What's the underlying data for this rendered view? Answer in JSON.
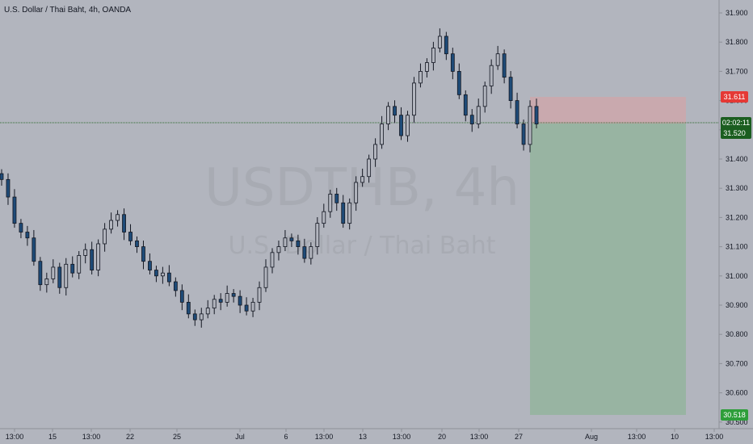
{
  "header": {
    "symbol_description": "U.S. Dollar / Thai Baht, 4h, OANDA"
  },
  "watermark": {
    "ticker": "USDTHB, 4h",
    "description": "U.S. Dollar / Thai Baht"
  },
  "price_tags": {
    "stop_loss": "31.611",
    "countdown": "02:02:11",
    "last_price": "31.520",
    "take_profit": "30.518"
  },
  "colors": {
    "background": "#b2b5be",
    "up_candle": "#b2b5be",
    "down_candle": "#1e4b78",
    "wick": "#131722",
    "loss_zone": "#c9a9ae",
    "profit_zone": "#98b4a2",
    "stop_tag": "#e53935",
    "last_price_tag": "#1b5e20",
    "target_tag": "#2e9e3a"
  },
  "chart_data": {
    "type": "candlestick",
    "title": "U.S. Dollar / Thai Baht, 4h, OANDA",
    "y_ticks": [
      "31.900",
      "31.800",
      "31.700",
      "31.600",
      "31.500",
      "31.400",
      "31.300",
      "31.200",
      "31.100",
      "31.000",
      "30.900",
      "30.800",
      "30.700",
      "30.600",
      "30.500"
    ],
    "ylim": [
      30.45,
      31.95
    ],
    "x_ticks": [
      "13:00",
      "15",
      "13:00",
      "22",
      "25",
      "Jul",
      "6",
      "13:00",
      "13",
      "13:00",
      "20",
      "13:00",
      "27",
      "Aug",
      "13:00",
      "10",
      "13:00"
    ],
    "close_series": [
      31.33,
      31.27,
      31.18,
      31.15,
      31.13,
      31.05,
      30.97,
      30.99,
      31.03,
      30.96,
      31.04,
      31.01,
      31.07,
      31.09,
      31.02,
      31.11,
      31.16,
      31.19,
      31.21,
      31.15,
      31.12,
      31.1,
      31.05,
      31.02,
      31.0,
      31.01,
      30.98,
      30.95,
      30.91,
      30.87,
      30.85,
      30.87,
      30.89,
      30.92,
      30.91,
      30.94,
      30.93,
      30.9,
      30.88,
      30.91,
      30.96,
      31.03,
      31.08,
      31.1,
      31.13,
      31.12,
      31.1,
      31.06,
      31.1,
      31.18,
      31.22,
      31.28,
      31.25,
      31.18,
      31.25,
      31.32,
      31.34,
      31.4,
      31.45,
      31.52,
      31.58,
      31.55,
      31.48,
      31.55,
      31.66,
      31.7,
      31.73,
      31.78,
      31.82,
      31.76,
      31.7,
      31.62,
      31.55,
      31.52,
      31.58,
      31.65,
      31.72,
      31.76,
      31.68,
      31.6,
      31.52,
      31.45,
      31.58,
      31.52
    ]
  }
}
